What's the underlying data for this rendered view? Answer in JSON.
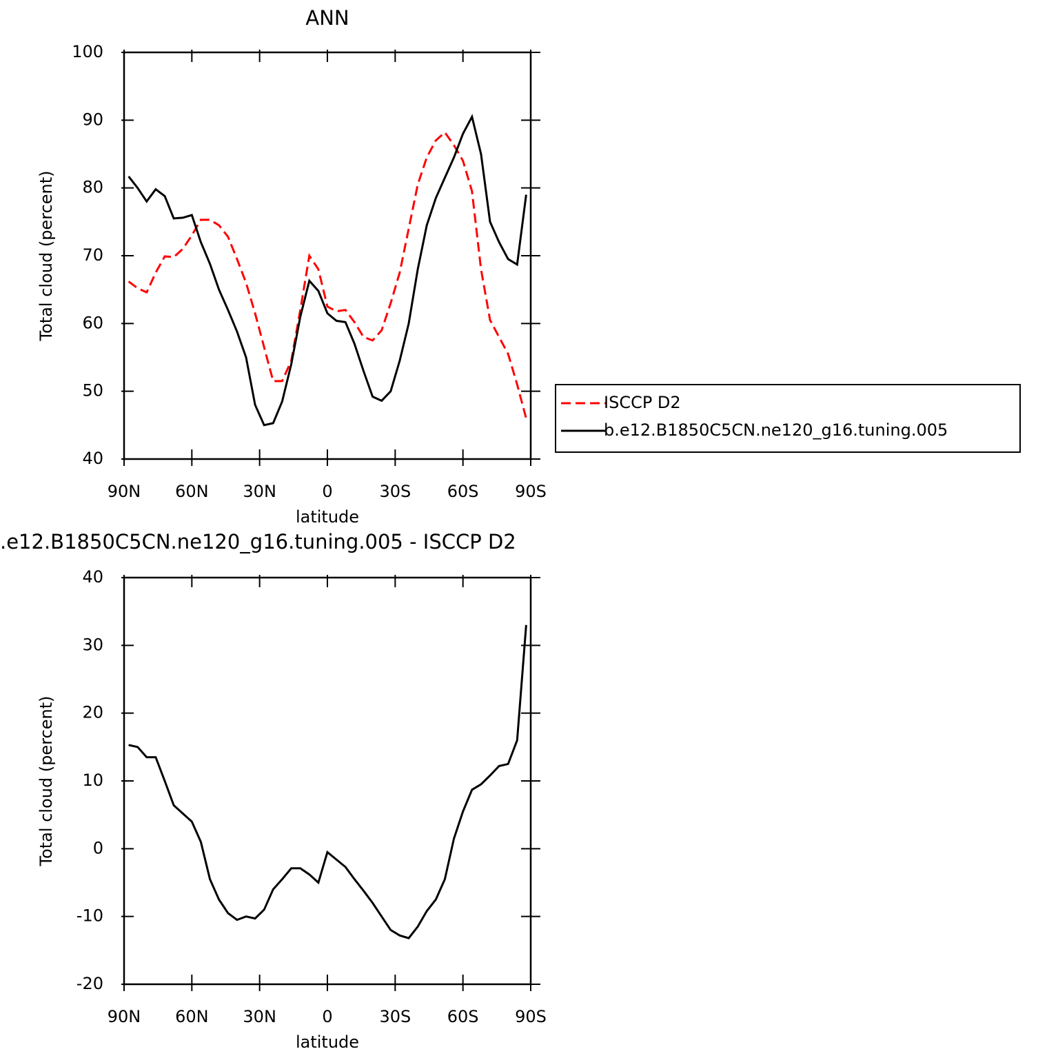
{
  "chart_data": [
    {
      "type": "line",
      "title": "ANN",
      "xlabel": "latitude",
      "ylabel": "Total cloud (percent)",
      "x": [
        88,
        84,
        80,
        76,
        72,
        68,
        64,
        60,
        56,
        52,
        48,
        44,
        40,
        36,
        32,
        28,
        24,
        20,
        16,
        12,
        8,
        4,
        0,
        -4,
        -8,
        -12,
        -16,
        -20,
        -24,
        -28,
        -32,
        -36,
        -40,
        -44,
        -48,
        -52,
        -56,
        -60,
        -64,
        -68,
        -72,
        -76,
        -80,
        -84,
        -88
      ],
      "series": [
        {
          "name": "ISCCP D2",
          "color": "#ff0000",
          "linestyle": "dashed",
          "values": [
            66.2,
            65.2,
            64.6,
            67.5,
            69.9,
            69.8,
            71,
            73,
            75.3,
            75.3,
            74.5,
            72.8,
            69.5,
            66,
            61.5,
            56.5,
            51.5,
            51.5,
            54.5,
            62,
            70,
            68,
            62.5,
            61.8,
            62,
            60.2,
            58,
            57.5,
            59,
            63,
            67.5,
            74,
            80.5,
            84.5,
            87,
            88.2,
            86.3,
            84,
            79.5,
            68,
            60.5,
            58,
            55.5,
            51,
            46
          ]
        },
        {
          "name": "b.e12.B1850C5CN.ne120_g16.tuning.005",
          "color": "#000000",
          "linestyle": "solid",
          "values": [
            81.7,
            80,
            78,
            79.8,
            78.8,
            75.5,
            75.6,
            76,
            72,
            68.8,
            65,
            62,
            58.8,
            55,
            48,
            45,
            45.3,
            48.5,
            54,
            61,
            66.3,
            64.8,
            61.5,
            60.4,
            60.2,
            57,
            53,
            49.2,
            48.6,
            50,
            54.5,
            60,
            68,
            74.5,
            78.5,
            81.5,
            84.5,
            88,
            90.5,
            85,
            75,
            72,
            69.5,
            68.7,
            79
          ]
        }
      ],
      "xlim": [
        90,
        -90
      ],
      "xticks": [
        {
          "value": 90,
          "label": "90N"
        },
        {
          "value": 60,
          "label": "60N"
        },
        {
          "value": 30,
          "label": "30N"
        },
        0,
        {
          "value": -30,
          "label": "30S"
        },
        {
          "value": -60,
          "label": "60S"
        },
        {
          "value": -90,
          "label": "90S"
        }
      ],
      "ylim": [
        40,
        100
      ],
      "yticks": [
        40,
        50,
        60,
        70,
        80,
        90,
        100
      ],
      "legend": "right"
    },
    {
      "type": "line",
      "title": ".e12.B1850C5CN.ne120_g16.tuning.005 - ISCCP D2",
      "xlabel": "latitude",
      "ylabel": "Total cloud (percent)",
      "x": [
        88,
        84,
        80,
        76,
        72,
        68,
        64,
        60,
        56,
        52,
        48,
        44,
        40,
        36,
        32,
        28,
        24,
        20,
        16,
        12,
        8,
        4,
        0,
        -4,
        -8,
        -12,
        -16,
        -20,
        -24,
        -28,
        -32,
        -36,
        -40,
        -44,
        -48,
        -52,
        -56,
        -60,
        -64,
        -68,
        -72,
        -76,
        -80,
        -84,
        -88
      ],
      "color": "#000000",
      "values": [
        15.3,
        15,
        13.5,
        13.5,
        10,
        6.4,
        5.2,
        4,
        1,
        -4.5,
        -7.5,
        -9.5,
        -10.5,
        -10,
        -10.3,
        -9,
        -6,
        -4.5,
        -2.9,
        -2.9,
        -3.8,
        -5,
        -0.5,
        -1.6,
        -2.7,
        -4.5,
        -6.2,
        -8,
        -10,
        -12,
        -12.8,
        -13.2,
        -11.5,
        -9.2,
        -7.5,
        -4.5,
        1.5,
        5.5,
        8.7,
        9.5,
        10.8,
        12.2,
        12.5,
        16,
        33
      ],
      "xlim": [
        90,
        -90
      ],
      "xticks": [
        {
          "value": 90,
          "label": "90N"
        },
        {
          "value": 60,
          "label": "60N"
        },
        {
          "value": 30,
          "label": "30N"
        },
        0,
        {
          "value": -30,
          "label": "30S"
        },
        {
          "value": -60,
          "label": "60S"
        },
        {
          "value": -90,
          "label": "90S"
        }
      ],
      "ylim": [
        -20,
        40
      ],
      "yticks": [
        -20,
        -10,
        0,
        10,
        20,
        30,
        40
      ]
    }
  ]
}
